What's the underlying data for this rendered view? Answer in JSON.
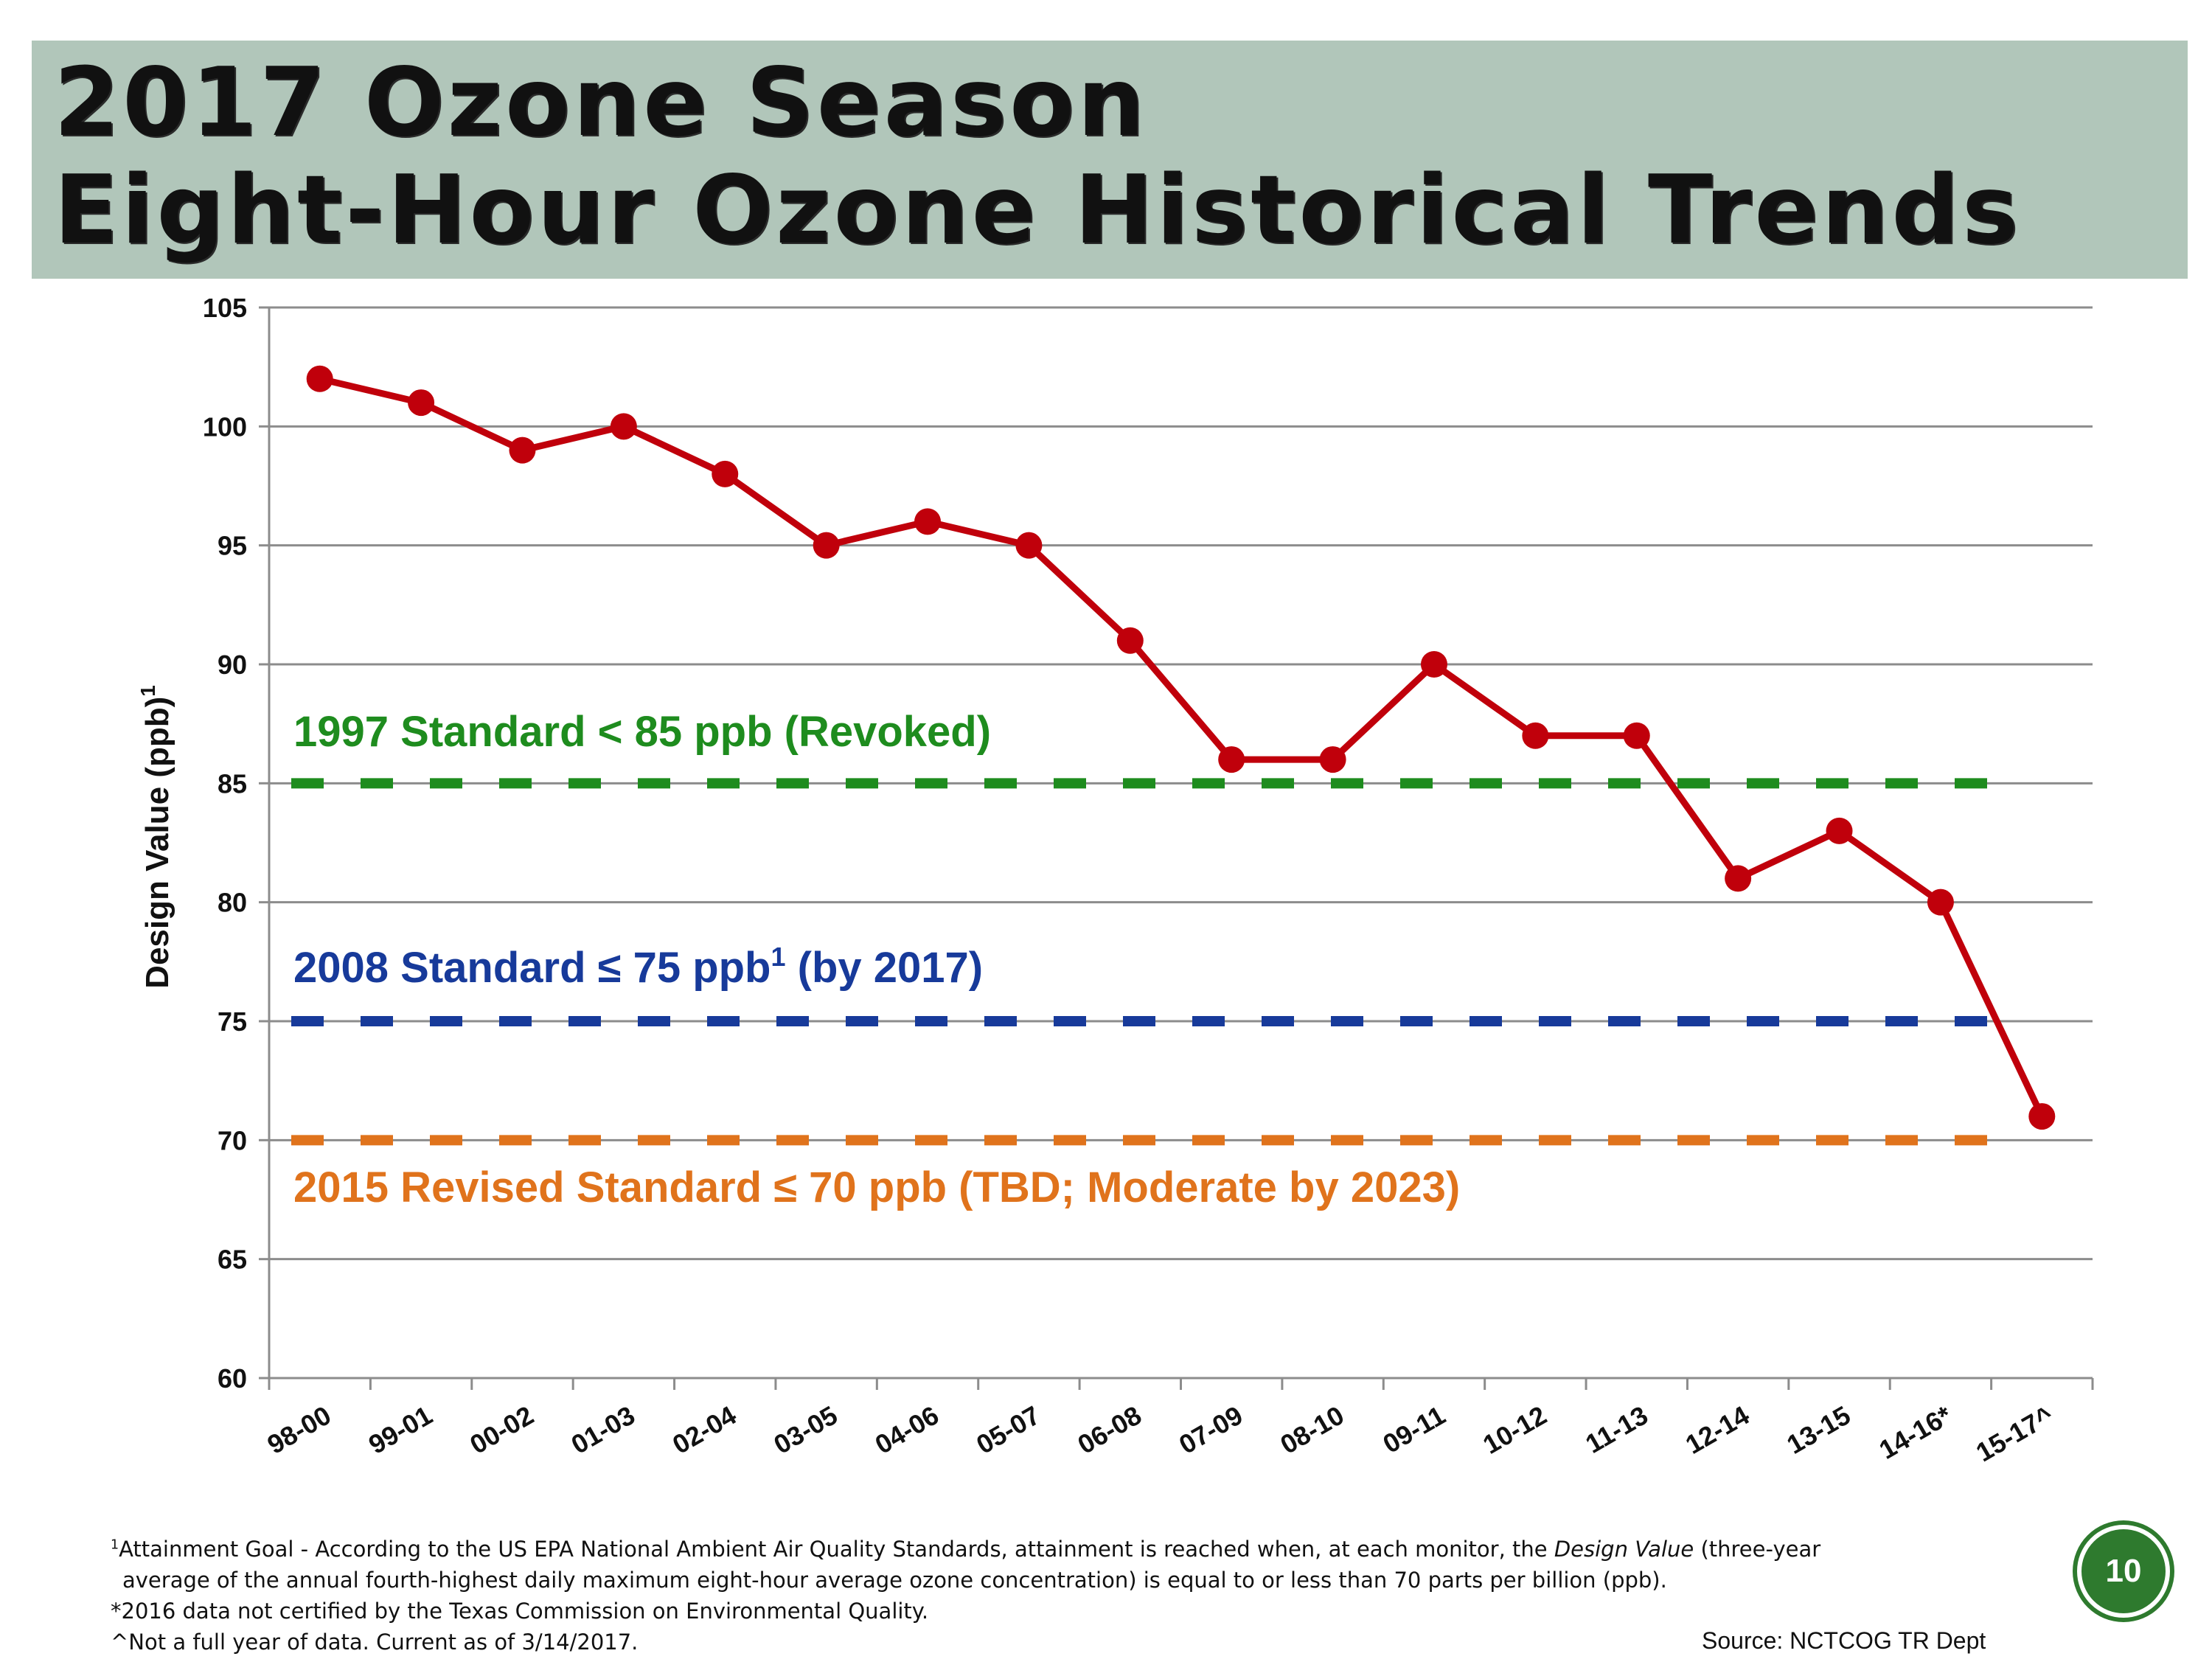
{
  "title": {
    "line1": "2017 Ozone Season",
    "line2": "Eight-Hour Ozone Historical Trends"
  },
  "chart_data": {
    "type": "line",
    "title": "2017 Ozone Season Eight-Hour Ozone Historical Trends",
    "xlabel": "",
    "ylabel": "Design Value (ppb)",
    "ylabel_sup": "1",
    "ylim": [
      60,
      105
    ],
    "yticks": [
      60,
      65,
      70,
      75,
      80,
      85,
      90,
      95,
      100,
      105
    ],
    "grid": true,
    "categories": [
      "98-00",
      "99-01",
      "00-02",
      "01-03",
      "02-04",
      "03-05",
      "04-06",
      "05-07",
      "06-08",
      "07-09",
      "08-10",
      "09-11",
      "10-12",
      "11-13",
      "12-14",
      "13-15",
      "14-16*",
      "15-17^"
    ],
    "series": [
      {
        "name": "Design Value",
        "color": "#c0000b",
        "values": [
          102,
          101,
          99,
          100,
          98,
          95,
          96,
          95,
          91,
          86,
          86,
          90,
          87,
          87,
          81,
          83,
          80,
          71
        ]
      }
    ],
    "reference_lines": [
      {
        "value": 85,
        "color": "#1e8c1e",
        "label": "1997 Standard < 85 ppb (Revoked)"
      },
      {
        "value": 75,
        "color": "#173a9a",
        "label_pre": "2008 Standard ≤ 75 ppb",
        "label_sup": "1",
        "label_post": " (by 2017)"
      },
      {
        "value": 70,
        "color": "#e0731c",
        "label": "2015 Revised Standard ≤ 70 ppb (TBD; Moderate by 2023)"
      }
    ]
  },
  "footnotes": {
    "line1_sup": "1",
    "line1_pre": "Attainment Goal - According to the US EPA National Ambient Air Quality Standards, attainment is reached when, at each monitor, the ",
    "line1_italic": "Design Value",
    "line1_post": " (three-year",
    "line2": "average of the annual fourth-highest daily maximum eight-hour average ozone concentration) is equal to or less than 70 parts per billion (ppb).",
    "line3": "*2016 data not certified by the Texas Commission on Environmental Quality.",
    "line4": "^Not a full year of data. Current as of 3/14/2017."
  },
  "source": "Source:  NCTCOG TR Dept",
  "page_number": "10"
}
